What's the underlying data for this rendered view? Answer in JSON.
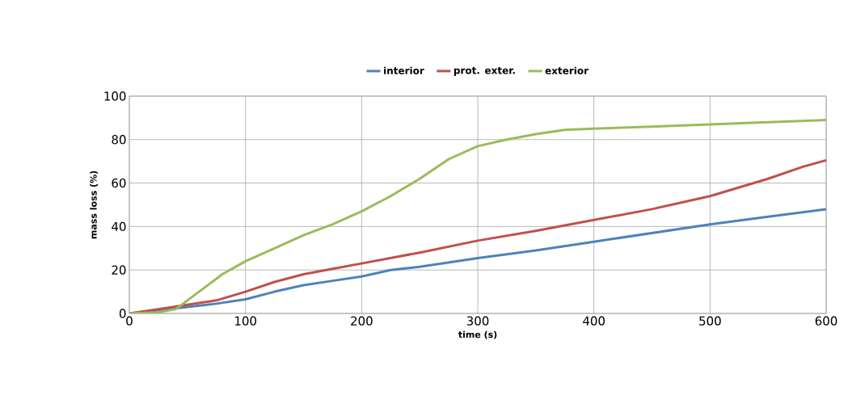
{
  "chart_data": {
    "type": "line",
    "xlabel": "time (s)",
    "ylabel": "mass loss (%)",
    "xlim": [
      0,
      600
    ],
    "xticks": [
      0,
      100,
      200,
      300,
      400,
      500,
      600
    ],
    "ylim": [
      0,
      100
    ],
    "yticks": [
      0,
      20,
      40,
      60,
      80,
      100
    ],
    "grid": true,
    "legend": "top",
    "marker": "none",
    "line_style": "solid",
    "series": [
      {
        "name": "interior",
        "color": "#4f81bd",
        "x": [
          0,
          25,
          50,
          75,
          100,
          125,
          150,
          175,
          200,
          225,
          250,
          300,
          350,
          400,
          450,
          500,
          550,
          600
        ],
        "values": [
          0,
          1.5,
          3,
          4.5,
          6.5,
          10,
          13,
          15,
          17,
          20,
          21.5,
          25.5,
          29,
          33,
          37,
          41,
          44.5,
          48
        ]
      },
      {
        "name": "prot. exter.",
        "color": "#c0504d",
        "x": [
          0,
          25,
          50,
          75,
          100,
          125,
          150,
          175,
          200,
          250,
          300,
          350,
          400,
          450,
          500,
          550,
          580,
          600
        ],
        "values": [
          0,
          2,
          4,
          6,
          10,
          14.5,
          18,
          20.5,
          23,
          28,
          33.5,
          38,
          43,
          48,
          54,
          62,
          67.5,
          70.5
        ]
      },
      {
        "name": "exterior",
        "color": "#9bbb59",
        "x": [
          0,
          25,
          40,
          60,
          80,
          100,
          125,
          150,
          175,
          200,
          225,
          250,
          275,
          300,
          325,
          350,
          375,
          400,
          450,
          500,
          550,
          600
        ],
        "values": [
          0,
          0.5,
          2,
          10,
          18,
          24,
          30,
          36,
          41,
          47,
          54,
          62,
          71,
          77,
          80,
          82.5,
          84.5,
          85,
          86,
          87,
          88,
          89
        ]
      }
    ]
  }
}
